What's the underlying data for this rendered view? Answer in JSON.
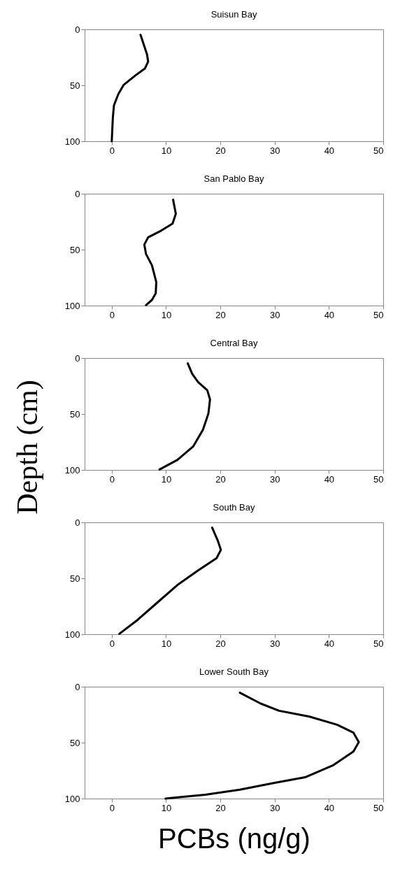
{
  "chart_data": [
    {
      "type": "line",
      "title": "Suisun Bay",
      "xlim": [
        -5,
        50
      ],
      "xticks": [
        0,
        10,
        20,
        30,
        40,
        50
      ],
      "ylim": [
        100,
        0
      ],
      "yticks": [
        0,
        50,
        100
      ],
      "grid": false,
      "series": [
        {
          "color": "#000000",
          "x": [
            5.3,
            6.5,
            6.7,
            6.1,
            4.4,
            2.2,
            1.2,
            0.4,
            0.2,
            0
          ],
          "values": [
            4.8,
            22.5,
            28.8,
            35,
            41,
            49.6,
            58,
            68,
            79,
            100
          ]
        }
      ]
    },
    {
      "type": "line",
      "title": "San Pablo Bay",
      "xlim": [
        -5,
        50
      ],
      "xticks": [
        0,
        10,
        20,
        30,
        40,
        50
      ],
      "ylim": [
        100,
        0
      ],
      "yticks": [
        0,
        50,
        100
      ],
      "grid": false,
      "series": [
        {
          "color": "#000000",
          "x": [
            11.3,
            11.8,
            11.2,
            9.1,
            6.7,
            6.0,
            6.3,
            7.4,
            8.2,
            8.1,
            7.4,
            6.3
          ],
          "values": [
            5.4,
            18,
            26.7,
            33,
            39,
            45.4,
            53.8,
            64,
            79,
            89,
            95,
            99.6
          ]
        }
      ]
    },
    {
      "type": "line",
      "title": "Central Bay",
      "ylabel": "Depth (cm)",
      "xlim": [
        -5,
        50
      ],
      "xticks": [
        0,
        10,
        20,
        30,
        40,
        50
      ],
      "ylim": [
        100,
        0
      ],
      "yticks": [
        0,
        50,
        100
      ],
      "grid": false,
      "series": [
        {
          "color": "#000000",
          "x": [
            14.0,
            14.8,
            15.9,
            17.6,
            18.1,
            17.8,
            16.8,
            15.0,
            12.1,
            8.8
          ],
          "values": [
            4.8,
            14,
            21.5,
            28.8,
            37,
            49.6,
            64,
            79,
            91,
            99.6
          ]
        }
      ]
    },
    {
      "type": "line",
      "title": "South Bay",
      "xlim": [
        -5,
        50
      ],
      "xticks": [
        0,
        10,
        20,
        30,
        40,
        50
      ],
      "ylim": [
        100,
        0
      ],
      "yticks": [
        0,
        50,
        100
      ],
      "grid": false,
      "series": [
        {
          "color": "#000000",
          "x": [
            18.5,
            19.5,
            20.1,
            19.3,
            15.9,
            12.1,
            8.2,
            4.8,
            1.4
          ],
          "values": [
            4.8,
            16,
            24.6,
            32,
            43,
            56,
            72.5,
            87,
            99.6
          ]
        }
      ]
    },
    {
      "type": "line",
      "title": "Lower South Bay",
      "xlabel": "PCBs (ng/g)",
      "xlim": [
        -5,
        50
      ],
      "xticks": [
        0,
        10,
        20,
        30,
        40,
        50
      ],
      "ylim": [
        100,
        0
      ],
      "yticks": [
        0,
        50,
        100
      ],
      "grid": false,
      "series": [
        {
          "color": "#000000",
          "x": [
            23.6,
            27.4,
            30.8,
            36.4,
            41.5,
            44.5,
            45.5,
            44.5,
            40.7,
            35.6,
            30.0,
            23.6,
            17.2,
            9.9
          ],
          "values": [
            5.4,
            15,
            21.5,
            26.7,
            34,
            41,
            49.6,
            58,
            70.4,
            81,
            86,
            92,
            96.5,
            100
          ]
        }
      ]
    }
  ]
}
